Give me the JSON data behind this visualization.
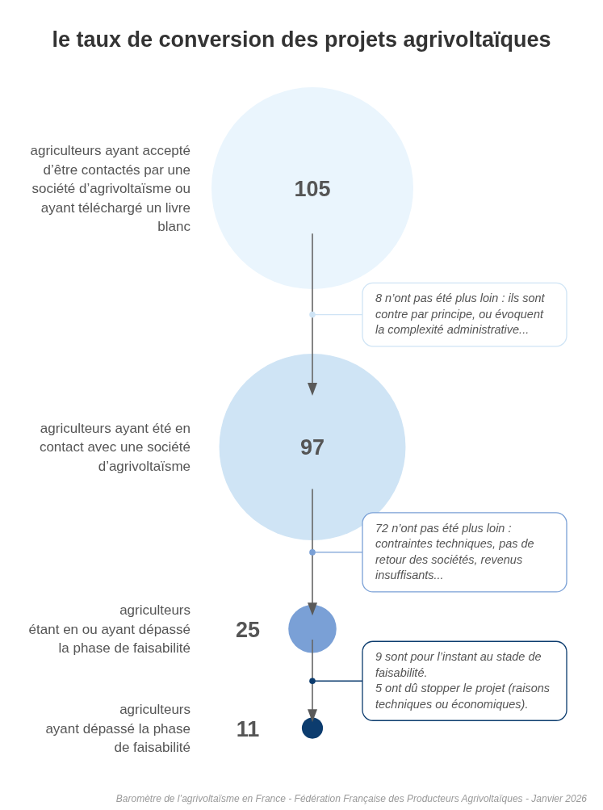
{
  "chart_data": {
    "type": "other",
    "title": "le taux de conversion des projets agrivoltaïques",
    "categories": [
      "agriculteurs ayant accepté\nd’être contactés par une\nsociété d’agrivoltaïsme ou\nayant téléchargé un livre\nblanc",
      "agriculteurs ayant été en\ncontact avec une société\nd’agrivoltaïsme",
      "agriculteurs\nétant en ou ayant dépassé\nla phase de faisabilité",
      "agriculteurs\nayant dépassé la phase\nde faisabilité"
    ],
    "values": [
      105,
      97,
      25,
      11
    ],
    "colors": [
      "#eaf5fd",
      "#cfe4f5",
      "#7aa0d6",
      "#0c3c6e"
    ],
    "data_labels": true,
    "annotations": [
      "8 n’ont pas été plus loin : ils sont\ncontre par principe, ou évoquent\nla complexité administrative...",
      "72 n’ont pas été plus loin :\ncontraintes techniques, pas de\nretour des sociétés, revenus\ninsuffisants...",
      "9 sont pour l’instant au stade de\nfaisabilité.\n5 ont dû stopper le projet (raisons\ntechniques ou économiques).",
      "Baromètre de l’agrivoltaïsme en France - Fédération Française des Producteurs Agrivoltaïques - Janvier 2026"
    ]
  }
}
